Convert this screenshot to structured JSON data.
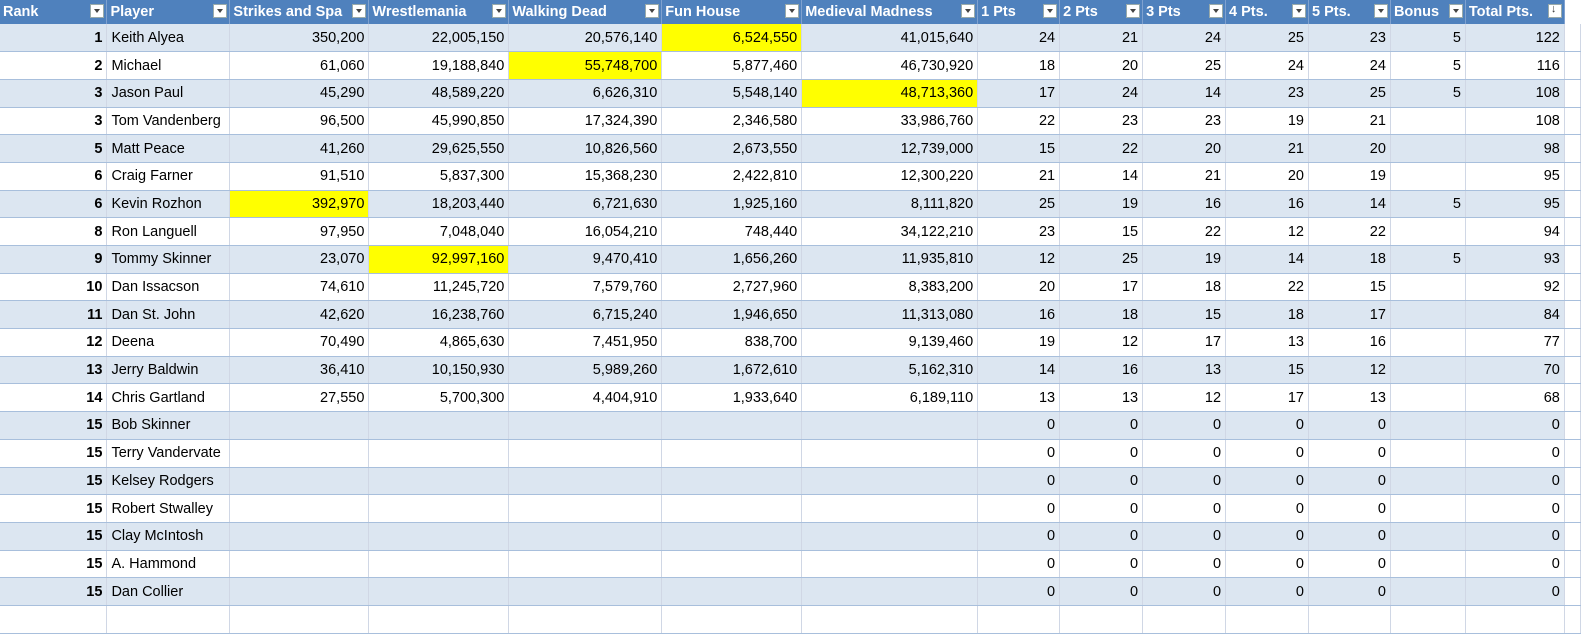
{
  "colors": {
    "header": "#4f81bd",
    "band": "#dce6f1",
    "highlight": "#ffff00"
  },
  "columns": [
    "Rank",
    "Player",
    "Strikes and Spa",
    "Wrestlemania",
    "Walking Dead",
    "Fun House",
    "Medieval Madness",
    "1 Pts",
    "2 Pts",
    "3 Pts",
    "4 Pts.",
    "5 Pts.",
    "Bonus",
    "Total Pts."
  ],
  "rows": [
    {
      "cells": [
        "1",
        "Keith Alyea",
        "350,200",
        "22,005,150",
        "20,576,140",
        "6,524,550",
        "41,015,640",
        "24",
        "21",
        "24",
        "25",
        "23",
        "5",
        "122"
      ],
      "highlight": 5
    },
    {
      "cells": [
        "2",
        "Michael",
        "61,060",
        "19,188,840",
        "55,748,700",
        "5,877,460",
        "46,730,920",
        "18",
        "20",
        "25",
        "24",
        "24",
        "5",
        "116"
      ],
      "highlight": 4
    },
    {
      "cells": [
        "3",
        "Jason Paul",
        "45,290",
        "48,589,220",
        "6,626,310",
        "5,548,140",
        "48,713,360",
        "17",
        "24",
        "14",
        "23",
        "25",
        "5",
        "108"
      ],
      "highlight": 6
    },
    {
      "cells": [
        "3",
        "Tom Vandenberg",
        "96,500",
        "45,990,850",
        "17,324,390",
        "2,346,580",
        "33,986,760",
        "22",
        "23",
        "23",
        "19",
        "21",
        "",
        "108"
      ]
    },
    {
      "cells": [
        "5",
        "Matt Peace",
        "41,260",
        "29,625,550",
        "10,826,560",
        "2,673,550",
        "12,739,000",
        "15",
        "22",
        "20",
        "21",
        "20",
        "",
        "98"
      ]
    },
    {
      "cells": [
        "6",
        "Craig Farner",
        "91,510",
        "5,837,300",
        "15,368,230",
        "2,422,810",
        "12,300,220",
        "21",
        "14",
        "21",
        "20",
        "19",
        "",
        "95"
      ]
    },
    {
      "cells": [
        "6",
        "Kevin Rozhon",
        "392,970",
        "18,203,440",
        "6,721,630",
        "1,925,160",
        "8,111,820",
        "25",
        "19",
        "16",
        "16",
        "14",
        "5",
        "95"
      ],
      "highlight": 2
    },
    {
      "cells": [
        "8",
        "Ron Languell",
        "97,950",
        "7,048,040",
        "16,054,210",
        "748,440",
        "34,122,210",
        "23",
        "15",
        "22",
        "12",
        "22",
        "",
        "94"
      ]
    },
    {
      "cells": [
        "9",
        "Tommy Skinner",
        "23,070",
        "92,997,160",
        "9,470,410",
        "1,656,260",
        "11,935,810",
        "12",
        "25",
        "19",
        "14",
        "18",
        "5",
        "93"
      ],
      "highlight": 3
    },
    {
      "cells": [
        "10",
        "Dan Issacson",
        "74,610",
        "11,245,720",
        "7,579,760",
        "2,727,960",
        "8,383,200",
        "20",
        "17",
        "18",
        "22",
        "15",
        "",
        "92"
      ]
    },
    {
      "cells": [
        "11",
        "Dan St. John",
        "42,620",
        "16,238,760",
        "6,715,240",
        "1,946,650",
        "11,313,080",
        "16",
        "18",
        "15",
        "18",
        "17",
        "",
        "84"
      ]
    },
    {
      "cells": [
        "12",
        "Deena",
        "70,490",
        "4,865,630",
        "7,451,950",
        "838,700",
        "9,139,460",
        "19",
        "12",
        "17",
        "13",
        "16",
        "",
        "77"
      ]
    },
    {
      "cells": [
        "13",
        "Jerry Baldwin",
        "36,410",
        "10,150,930",
        "5,989,260",
        "1,672,610",
        "5,162,310",
        "14",
        "16",
        "13",
        "15",
        "12",
        "",
        "70"
      ]
    },
    {
      "cells": [
        "14",
        "Chris Gartland",
        "27,550",
        "5,700,300",
        "4,404,910",
        "1,933,640",
        "6,189,110",
        "13",
        "13",
        "12",
        "17",
        "13",
        "",
        "68"
      ]
    },
    {
      "cells": [
        "15",
        "Bob Skinner",
        "",
        "",
        "",
        "",
        "",
        "0",
        "0",
        "0",
        "0",
        "0",
        "",
        "0"
      ]
    },
    {
      "cells": [
        "15",
        "Terry Vandervate",
        "",
        "",
        "",
        "",
        "",
        "0",
        "0",
        "0",
        "0",
        "0",
        "",
        "0"
      ]
    },
    {
      "cells": [
        "15",
        "Kelsey Rodgers",
        "",
        "",
        "",
        "",
        "",
        "0",
        "0",
        "0",
        "0",
        "0",
        "",
        "0"
      ]
    },
    {
      "cells": [
        "15",
        "Robert Stwalley",
        "",
        "",
        "",
        "",
        "",
        "0",
        "0",
        "0",
        "0",
        "0",
        "",
        "0"
      ]
    },
    {
      "cells": [
        "15",
        "Clay McIntosh",
        "",
        "",
        "",
        "",
        "",
        "0",
        "0",
        "0",
        "0",
        "0",
        "",
        "0"
      ]
    },
    {
      "cells": [
        "15",
        "A. Hammond",
        "",
        "",
        "",
        "",
        "",
        "0",
        "0",
        "0",
        "0",
        "0",
        "",
        "0"
      ]
    },
    {
      "cells": [
        "15",
        "Dan Collier",
        "",
        "",
        "",
        "",
        "",
        "0",
        "0",
        "0",
        "0",
        "0",
        "",
        "0"
      ]
    },
    {
      "cells": [
        "",
        "",
        "",
        "",
        "",
        "",
        "",
        "",
        "",
        "",
        "",
        "",
        "",
        ""
      ]
    }
  ]
}
